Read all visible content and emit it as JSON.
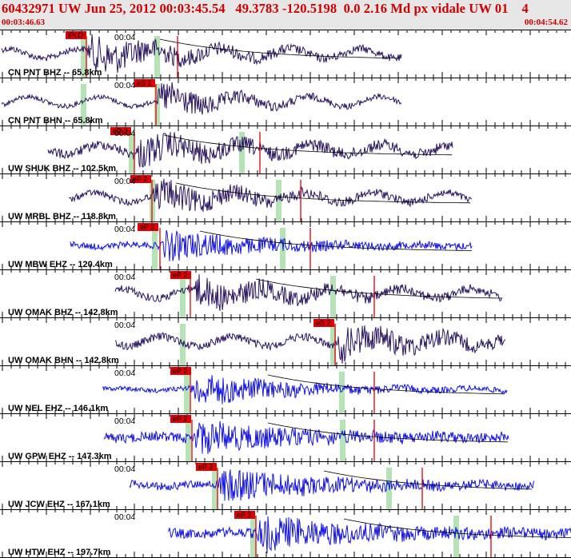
{
  "header": {
    "title": "60432971 UW Jun 25, 2012 00:03:45.54   49.3783 -120.5198  0.0 2.16 Md px vidale UW 01    4",
    "time_start": "00:03:46.63",
    "time_end": "00:04:54.62"
  },
  "colors": {
    "header_bg": "#e6e6e6",
    "title": "#d00000",
    "pick_box": "#e00000",
    "trace_bh": "#2c1563",
    "trace_eh": "#1414e6",
    "phase_window": "#b5e3b5"
  },
  "panels": [
    {
      "label": "CN PNT BHZ -- 65.8km",
      "channel": "BH",
      "pick_text": "iPcD",
      "time_label": "00:04",
      "has_curve": true
    },
    {
      "label": "CN PNT BHN -- 65.8km",
      "channel": "BH",
      "pick_text": "eS 2",
      "time_label": "00:04",
      "has_curve": false
    },
    {
      "label": "UW SHUK BHZ -- 102.5km",
      "channel": "BH",
      "pick_text": "eP 2",
      "time_label": "00:04",
      "has_curve": true
    },
    {
      "label": "UW MRBL BHZ -- 118.8km",
      "channel": "BH",
      "pick_text": "eP 2",
      "time_label": "00:04",
      "has_curve": true
    },
    {
      "label": "UW MBW EHZ -- 120.4km",
      "channel": "EH",
      "pick_text": "eP 2",
      "time_label": "00:04",
      "has_curve": true
    },
    {
      "label": "UW OMAK BHZ -- 142.8km",
      "channel": "BH",
      "pick_text": "eP 2",
      "time_label": "00:04",
      "has_curve": true
    },
    {
      "label": "UW OMAK BHN -- 142.8km",
      "channel": "BH",
      "pick_text": "eS 2",
      "time_label": "00:04",
      "has_curve": false
    },
    {
      "label": "UW NEL EHZ -- 146.1km",
      "channel": "EH",
      "pick_text": "eP 2",
      "time_label": "00:04",
      "has_curve": true
    },
    {
      "label": "UW GPW EHZ -- 147.3km",
      "channel": "EH",
      "pick_text": "eP 2",
      "time_label": "00:04",
      "has_curve": true
    },
    {
      "label": "UW JCW EHZ -- 167.1km",
      "channel": "EH",
      "pick_text": "eP 2",
      "time_label": "00:04",
      "has_curve": true
    },
    {
      "label": "UW HTW EHZ -- 197.7km",
      "channel": "EH",
      "pick_text": "eP 2",
      "time_label": "00:04",
      "has_curve": true
    }
  ]
}
